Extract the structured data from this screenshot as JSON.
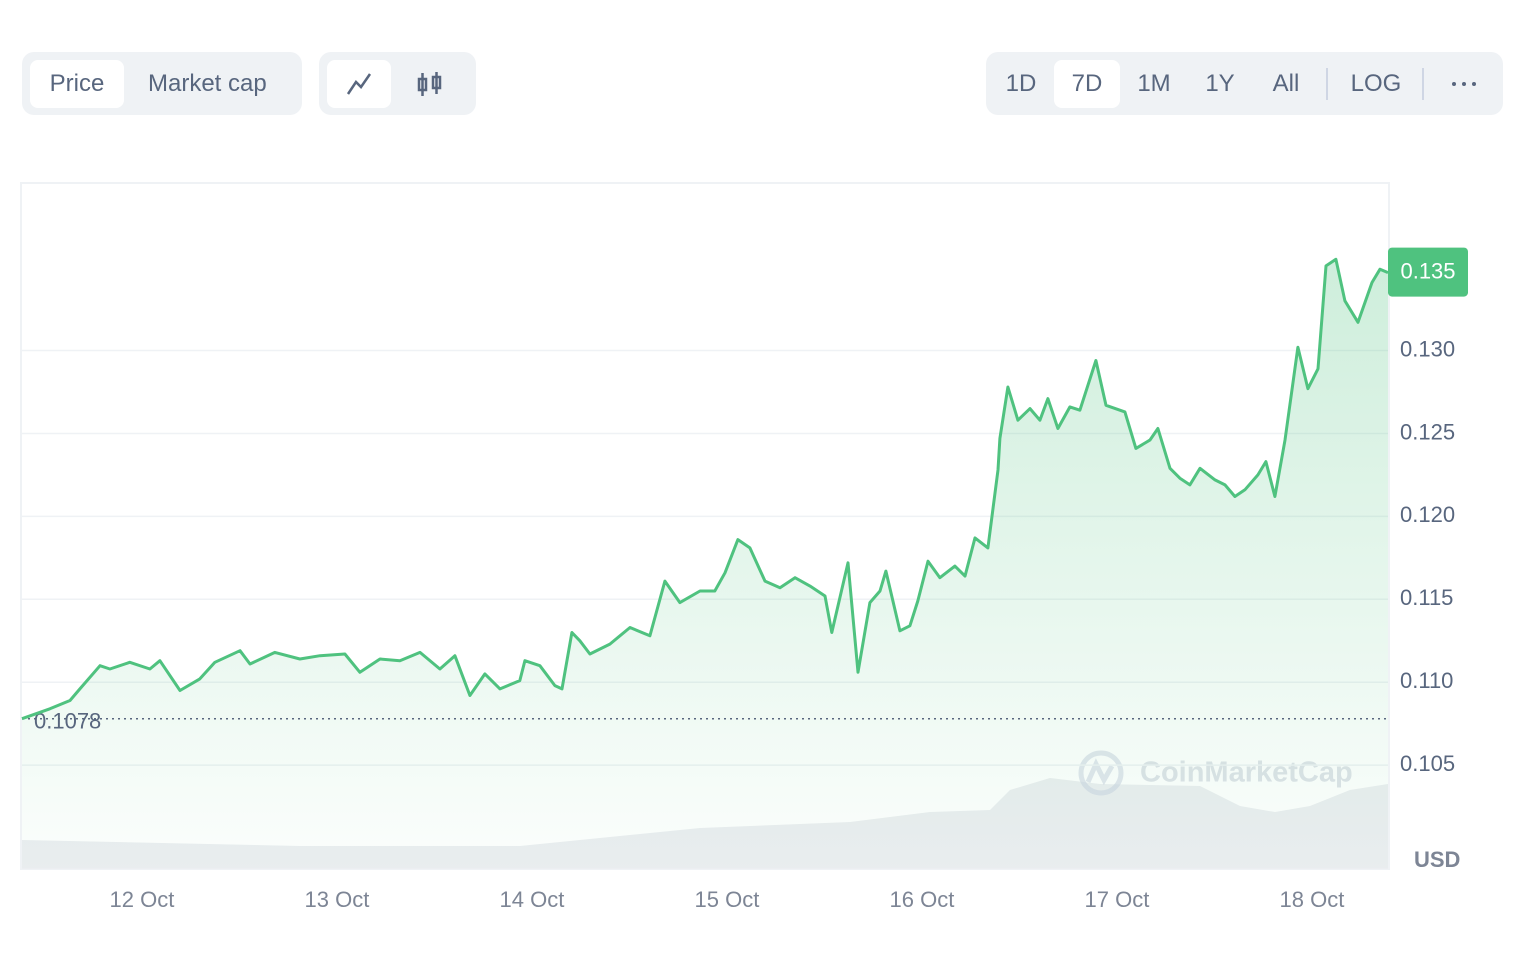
{
  "toolbar": {
    "tabs": [
      "Price",
      "Market cap"
    ],
    "active_tab": 0,
    "ranges": [
      "1D",
      "7D",
      "1M",
      "1Y",
      "All"
    ],
    "active_range": 1,
    "scale": "LOG"
  },
  "chart_data": {
    "type": "line",
    "y_label": "USD",
    "watermark": "CoinMarketCap",
    "color": "#4fc27f",
    "grid": true,
    "x": [
      11.385,
      11.528,
      11.631,
      11.682,
      11.785,
      11.836,
      11.938,
      12.041,
      12.092,
      12.195,
      12.297,
      12.374,
      12.503,
      12.554,
      12.682,
      12.81,
      12.913,
      13.041,
      13.118,
      13.221,
      13.323,
      13.426,
      13.528,
      13.605,
      13.682,
      13.759,
      13.836,
      13.938,
      13.964,
      14.041,
      14.118,
      14.154,
      14.205,
      14.246,
      14.297,
      14.4,
      14.503,
      14.605,
      14.682,
      14.759,
      14.862,
      14.938,
      14.99,
      15.056,
      15.118,
      15.195,
      15.272,
      15.349,
      15.426,
      15.503,
      15.538,
      15.621,
      15.672,
      15.733,
      15.785,
      15.815,
      15.887,
      15.938,
      15.979,
      16.031,
      16.092,
      16.169,
      16.221,
      16.272,
      16.338,
      16.39,
      16.4,
      16.441,
      16.492,
      16.554,
      16.605,
      16.646,
      16.697,
      16.759,
      16.81,
      16.892,
      16.944,
      17.041,
      17.097,
      17.169,
      17.21,
      17.272,
      17.323,
      17.374,
      17.426,
      17.503,
      17.554,
      17.605,
      17.656,
      17.723,
      17.764,
      17.81,
      17.862,
      17.928,
      17.979,
      18.031,
      18.072,
      18.123,
      18.169,
      18.236,
      18.308,
      18.349,
      18.39
    ],
    "values": [
      0.1078,
      0.1084,
      0.1089,
      0.1096,
      0.111,
      0.1108,
      0.1112,
      0.1108,
      0.1113,
      0.1095,
      0.1102,
      0.1112,
      0.1119,
      0.1111,
      0.1118,
      0.1114,
      0.1116,
      0.1117,
      0.1106,
      0.1114,
      0.1113,
      0.1118,
      0.1108,
      0.1116,
      0.1092,
      0.1105,
      0.1096,
      0.1101,
      0.1113,
      0.111,
      0.1098,
      0.1096,
      0.113,
      0.1125,
      0.1117,
      0.1123,
      0.1133,
      0.1128,
      0.1161,
      0.1148,
      0.1155,
      0.1155,
      0.1166,
      0.1186,
      0.1181,
      0.1161,
      0.1157,
      0.1163,
      0.1158,
      0.1152,
      0.113,
      0.1172,
      0.1106,
      0.1148,
      0.1155,
      0.1167,
      0.1131,
      0.1134,
      0.1149,
      0.1173,
      0.1163,
      0.117,
      0.1164,
      0.1187,
      0.1181,
      0.1228,
      0.1247,
      0.1278,
      0.1258,
      0.1265,
      0.1258,
      0.1271,
      0.1253,
      0.1266,
      0.1264,
      0.1294,
      0.1267,
      0.1263,
      0.1241,
      0.1246,
      0.1253,
      0.1229,
      0.1223,
      0.1219,
      0.1229,
      0.1222,
      0.1219,
      0.1212,
      0.1216,
      0.1225,
      0.1233,
      0.1212,
      0.1246,
      0.1302,
      0.1277,
      0.1289,
      0.1351,
      0.1355,
      0.133,
      0.1317,
      0.1341,
      0.1349,
      0.1347
    ],
    "xlim": [
      11.385,
      18.39
    ],
    "xticks": [
      {
        "value": 12,
        "label": "12 Oct"
      },
      {
        "value": 13,
        "label": "13 Oct"
      },
      {
        "value": 14,
        "label": "14 Oct"
      },
      {
        "value": 15,
        "label": "15 Oct"
      },
      {
        "value": 16,
        "label": "16 Oct"
      },
      {
        "value": 17,
        "label": "17 Oct"
      },
      {
        "value": 18,
        "label": "18 Oct"
      }
    ],
    "ylim": [
      0.0988,
      0.1401
    ],
    "yticks": [
      {
        "value": 0.105,
        "label": "0.105"
      },
      {
        "value": 0.11,
        "label": "0.110"
      },
      {
        "value": 0.115,
        "label": "0.115"
      },
      {
        "value": 0.12,
        "label": "0.120"
      },
      {
        "value": 0.125,
        "label": "0.125"
      },
      {
        "value": 0.13,
        "label": "0.130"
      }
    ],
    "open_price": 0.1078,
    "last_price": {
      "value": 0.1347,
      "label": "0.135"
    }
  }
}
